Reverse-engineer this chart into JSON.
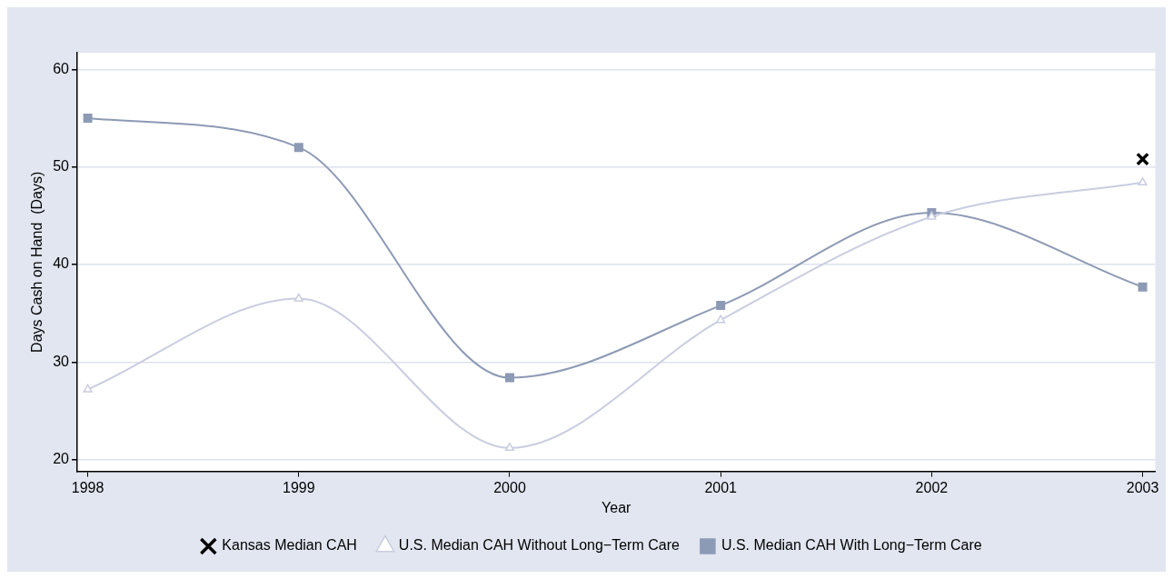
{
  "chart_data": {
    "type": "line",
    "xlabel": "Year",
    "ylabel": "Days Cash on Hand  (Days)",
    "x": [
      1998,
      1999,
      2000,
      2001,
      2002,
      2003
    ],
    "series": [
      {
        "name": "Kansas Median CAH",
        "type": "scatter",
        "color": "#000000",
        "marker": "cross",
        "x": [
          2003
        ],
        "values": [
          50.8
        ]
      },
      {
        "name": "U.S. Median CAH Without Long−Term Care",
        "type": "line",
        "color": "#c9cde0",
        "marker": "triangle",
        "values": [
          27.2,
          36.5,
          21.2,
          34.3,
          44.9,
          48.4
        ]
      },
      {
        "name": "U.S. Median CAH With Long−Term Care",
        "type": "line",
        "color": "#8d9ab5",
        "marker": "square",
        "values": [
          55,
          52,
          28.4,
          35.8,
          45.3,
          37.7
        ]
      }
    ],
    "xlim": [
      1997.95,
      2003.06
    ],
    "xticks": [
      1998,
      1999,
      2000,
      2001,
      2002,
      2003
    ],
    "ylim": [
      18.8,
      61.7
    ],
    "yticks": [
      20,
      30,
      40,
      50,
      60
    ],
    "grid": "y",
    "legend": "bottom"
  }
}
